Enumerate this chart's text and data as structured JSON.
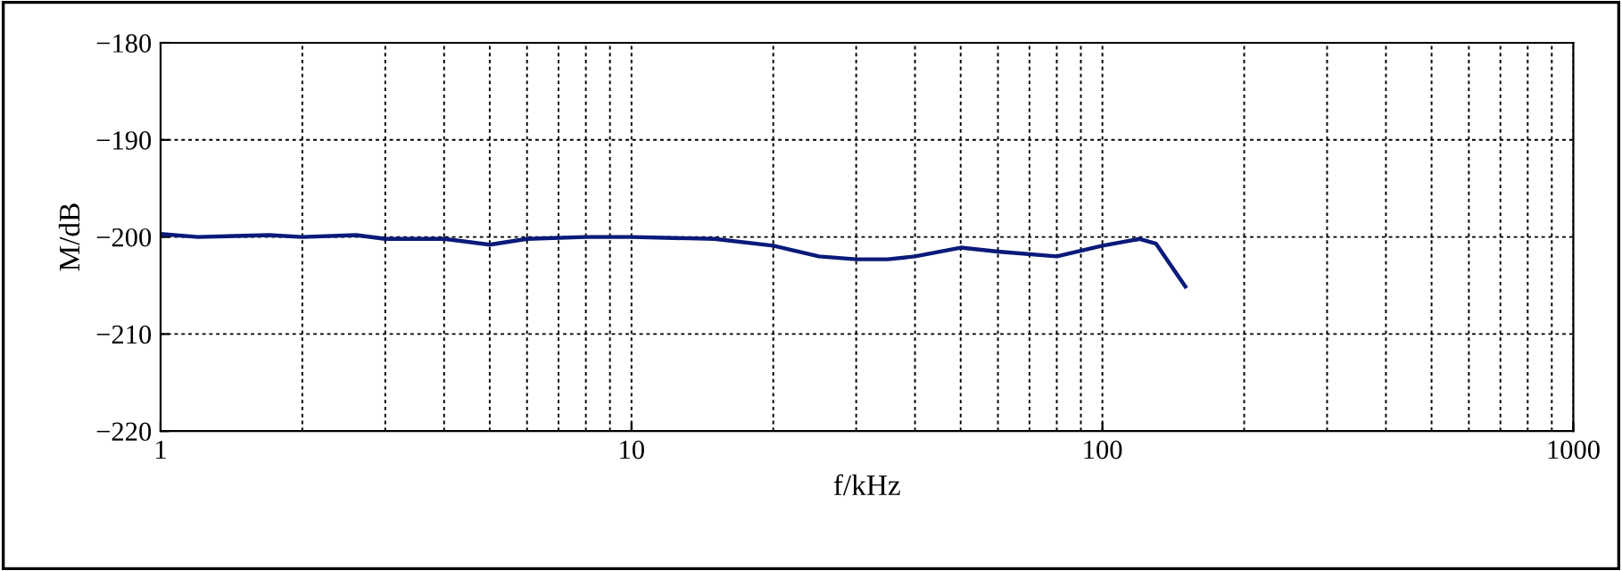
{
  "chart_data": {
    "type": "line",
    "xlabel": "f/kHz",
    "ylabel": "M/dB",
    "log": "x",
    "grid": true,
    "marker": "none",
    "line_style": "solid",
    "xlim": [
      1,
      1000
    ],
    "xticks": [
      1,
      10,
      100,
      1000
    ],
    "ylim": [
      -220,
      -180
    ],
    "yticks": [
      -220,
      -210,
      -200,
      -190,
      -180
    ],
    "series": [
      {
        "color": "#0a1a7a",
        "x": [
          1,
          1.2,
          1.7,
          2,
          2.6,
          3,
          4,
          5,
          6,
          8,
          10,
          15,
          20,
          25,
          30,
          35,
          40,
          50,
          60,
          80,
          100,
          120,
          130,
          150
        ],
        "values": [
          -199.7,
          -200.0,
          -199.8,
          -200.0,
          -199.8,
          -200.2,
          -200.2,
          -200.8,
          -200.2,
          -200.0,
          -200.0,
          -200.2,
          -200.9,
          -202.0,
          -202.3,
          -202.3,
          -202.0,
          -201.1,
          -201.5,
          -202.0,
          -200.9,
          -200.2,
          -200.7,
          -205.1
        ]
      }
    ]
  }
}
